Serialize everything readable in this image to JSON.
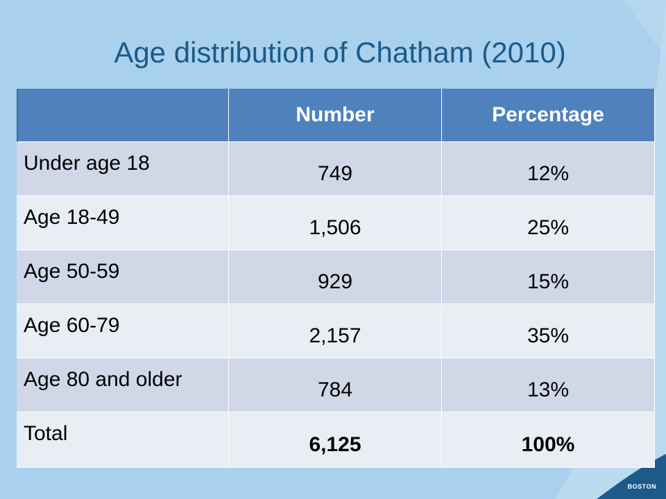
{
  "slide": {
    "title": "Age distribution of Chatham (2010)",
    "logo_text": "BOSTON"
  },
  "table": {
    "columns": [
      "",
      "Number",
      "Percentage"
    ],
    "rows": [
      {
        "label": "Under age 18",
        "number": "749",
        "percentage": "12%"
      },
      {
        "label": "Age 18-49",
        "number": "1,506",
        "percentage": "25%"
      },
      {
        "label": "Age 50-59",
        "number": "929",
        "percentage": "15%"
      },
      {
        "label": "Age 60-79",
        "number": "2,157",
        "percentage": "35%"
      },
      {
        "label": "Age 80 and older",
        "number": "784",
        "percentage": "13%"
      }
    ],
    "total": {
      "label": "Total",
      "number": "6,125",
      "percentage": "100%"
    }
  },
  "colors": {
    "background": "#a9d0ec",
    "title": "#1b5a8a",
    "header": "#4f81bd",
    "row_odd": "#d0d8e8",
    "row_even": "#e9edf4"
  }
}
